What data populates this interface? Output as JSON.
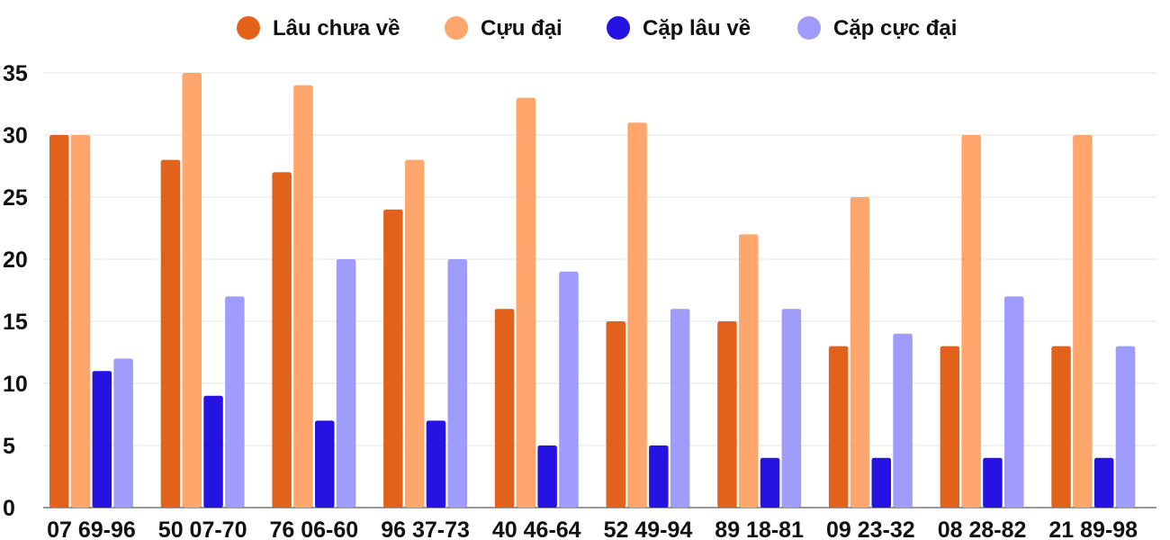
{
  "chart_data": {
    "type": "bar",
    "title": "",
    "xlabel": "",
    "ylabel": "",
    "categories": [
      "07 69-96",
      "50 07-70",
      "76 06-60",
      "96 37-73",
      "40 46-64",
      "52 49-94",
      "89 18-81",
      "09 23-32",
      "08 28-82",
      "21 89-98"
    ],
    "series": [
      {
        "name": "Lâu chưa về",
        "color": "#e2621b",
        "values": [
          30,
          28,
          27,
          24,
          16,
          15,
          15,
          13,
          13,
          13
        ]
      },
      {
        "name": "Cựu đại",
        "color": "#fea66c",
        "values": [
          30,
          35,
          34,
          28,
          33,
          31,
          22,
          25,
          30,
          30
        ]
      },
      {
        "name": "Cặp lâu về",
        "color": "#2613e2",
        "values": [
          11,
          9,
          7,
          7,
          5,
          5,
          4,
          4,
          4,
          4
        ]
      },
      {
        "name": "Cặp cực đại",
        "color": "#a09cfb",
        "values": [
          12,
          17,
          20,
          20,
          19,
          16,
          16,
          14,
          17,
          13
        ]
      }
    ],
    "ylim": [
      0,
      35
    ],
    "yticks": [
      0,
      5,
      10,
      15,
      20,
      25,
      30,
      35
    ],
    "grid": true,
    "legend_position": "top"
  }
}
